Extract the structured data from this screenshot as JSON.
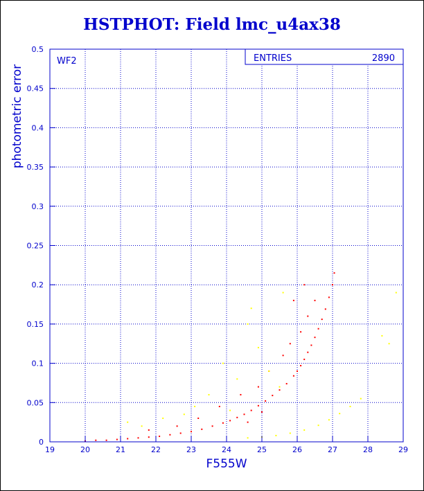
{
  "title": "HSTPHOT: Field lmc_u4ax38",
  "panel_label": "WF2",
  "stats": {
    "label": "ENTRIES",
    "value": "2890"
  },
  "colors": {
    "axis": "#0000cc",
    "grid": "#0000cc",
    "series_main": "#ff0000",
    "series_secondary": "#ffff00"
  },
  "chart_data": {
    "type": "scatter",
    "title": "HSTPHOT: Field lmc_u4ax38",
    "xlabel": "F555W",
    "ylabel": "photometric error",
    "xlim": [
      19,
      29
    ],
    "ylim": [
      0,
      0.5
    ],
    "x_ticks": [
      19,
      20,
      21,
      22,
      23,
      24,
      25,
      26,
      27,
      28,
      29
    ],
    "y_ticks": [
      0,
      0.05,
      0.1,
      0.15,
      0.2,
      0.25,
      0.3,
      0.35,
      0.4,
      0.45,
      0.5
    ],
    "grid": true,
    "series": [
      {
        "color": "#ff0000",
        "points": [
          [
            20.0,
            0.001
          ],
          [
            20.3,
            0.002
          ],
          [
            20.6,
            0.002
          ],
          [
            20.9,
            0.003
          ],
          [
            21.2,
            0.004
          ],
          [
            21.5,
            0.005
          ],
          [
            21.8,
            0.006
          ],
          [
            22.1,
            0.007
          ],
          [
            22.4,
            0.009
          ],
          [
            22.7,
            0.011
          ],
          [
            23.0,
            0.013
          ],
          [
            23.3,
            0.016
          ],
          [
            23.6,
            0.02
          ],
          [
            23.9,
            0.024
          ],
          [
            24.1,
            0.027
          ],
          [
            24.3,
            0.031
          ],
          [
            24.5,
            0.035
          ],
          [
            24.7,
            0.04
          ],
          [
            24.9,
            0.046
          ],
          [
            25.1,
            0.052
          ],
          [
            25.3,
            0.059
          ],
          [
            25.5,
            0.066
          ],
          [
            25.7,
            0.074
          ],
          [
            25.9,
            0.084
          ],
          [
            26.0,
            0.09
          ],
          [
            26.1,
            0.097
          ],
          [
            26.2,
            0.105
          ],
          [
            26.3,
            0.114
          ],
          [
            26.4,
            0.123
          ],
          [
            26.5,
            0.133
          ],
          [
            26.6,
            0.144
          ],
          [
            26.7,
            0.156
          ],
          [
            26.8,
            0.169
          ],
          [
            26.9,
            0.184
          ],
          [
            27.0,
            0.2
          ],
          [
            27.05,
            0.215
          ],
          [
            23.2,
            0.03
          ],
          [
            23.8,
            0.045
          ],
          [
            24.4,
            0.06
          ],
          [
            24.9,
            0.07
          ],
          [
            25.2,
            0.09
          ],
          [
            25.6,
            0.11
          ],
          [
            25.8,
            0.125
          ],
          [
            26.1,
            0.14
          ],
          [
            26.3,
            0.16
          ],
          [
            26.5,
            0.18
          ],
          [
            26.2,
            0.2
          ],
          [
            25.9,
            0.18
          ],
          [
            24.6,
            0.025
          ],
          [
            25.0,
            0.038
          ],
          [
            21.8,
            0.015
          ],
          [
            22.6,
            0.02
          ]
        ]
      },
      {
        "color": "#ffff00",
        "points": [
          [
            24.6,
            0.005
          ],
          [
            25.0,
            0.006
          ],
          [
            25.4,
            0.008
          ],
          [
            25.8,
            0.011
          ],
          [
            26.2,
            0.015
          ],
          [
            26.6,
            0.021
          ],
          [
            26.9,
            0.028
          ],
          [
            27.2,
            0.036
          ],
          [
            27.5,
            0.045
          ],
          [
            27.8,
            0.055
          ],
          [
            21.2,
            0.025
          ],
          [
            21.6,
            0.02
          ],
          [
            22.2,
            0.03
          ],
          [
            23.5,
            0.06
          ],
          [
            23.9,
            0.1
          ],
          [
            24.3,
            0.08
          ],
          [
            24.6,
            0.15
          ],
          [
            24.9,
            0.12
          ],
          [
            25.2,
            0.09
          ],
          [
            25.5,
            0.07
          ],
          [
            24.1,
            0.04
          ],
          [
            23.1,
            0.045
          ],
          [
            22.8,
            0.035
          ],
          [
            28.4,
            0.135
          ],
          [
            28.6,
            0.125
          ],
          [
            28.8,
            0.19
          ],
          [
            25.6,
            0.19
          ],
          [
            24.7,
            0.17
          ]
        ]
      }
    ]
  }
}
